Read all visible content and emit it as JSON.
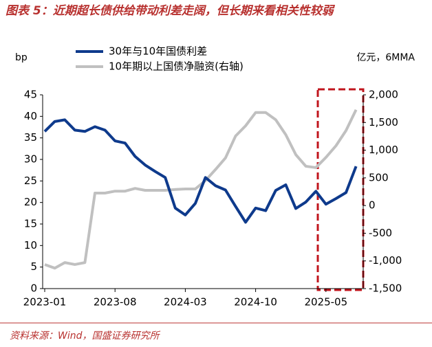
{
  "chart_data": {
    "type": "line",
    "title": "图表 5：近期超长债供给带动利差走阔，但长期来看相关性较弱",
    "y_label": "bp",
    "y2_label": "亿元，6MMA",
    "source": "资料来源：Wind，国盛证券研究所",
    "x": [
      "2023-01",
      "2023-02",
      "2023-03",
      "2023-04",
      "2023-05",
      "2023-06",
      "2023-07",
      "2023-08",
      "2023-09",
      "2023-10",
      "2023-11",
      "2023-12",
      "2024-01",
      "2024-02",
      "2024-03",
      "2024-04",
      "2024-05",
      "2024-06",
      "2024-07",
      "2024-08",
      "2024-09",
      "2024-10",
      "2024-11",
      "2024-12",
      "2025-01",
      "2025-02",
      "2025-03",
      "2025-04",
      "2025-05",
      "2025-06",
      "2025-07",
      "2025-08"
    ],
    "xticks": [
      "2023-01",
      "2023-08",
      "2024-03",
      "2024-10",
      "2025-05"
    ],
    "series": [
      {
        "name": "30年与10年国债利差",
        "color": "#0e3a8c",
        "axis": "y",
        "values": [
          36.5,
          38.8,
          39.2,
          36.8,
          36.5,
          37.6,
          36.8,
          34.3,
          33.8,
          30.7,
          28.7,
          27.2,
          25.8,
          18.7,
          17.1,
          19.8,
          25.8,
          23.9,
          22.9,
          19.1,
          15.4,
          18.7,
          18.1,
          22.8,
          24.1,
          18.6,
          20.1,
          22.6,
          19.6,
          20.9,
          22.3,
          28.4
        ]
      },
      {
        "name": "10年期以上国债净融资(右轴)",
        "color": "#c0c0c0",
        "axis": "y2",
        "values": [
          -1065,
          -1130,
          -1030,
          -1065,
          -1030,
          225,
          225,
          260,
          260,
          310,
          275,
          275,
          275,
          290,
          300,
          300,
          450,
          650,
          860,
          1255,
          1440,
          1680,
          1680,
          1550,
          1280,
          920,
          710,
          685,
          870,
          1080,
          1355,
          1730
        ]
      }
    ],
    "ylim": [
      0,
      45
    ],
    "yticks": [
      0,
      5,
      10,
      15,
      20,
      25,
      30,
      35,
      40,
      45
    ],
    "y2lim": [
      -1500,
      2000
    ],
    "y2ticks": [
      {
        "value": -1500,
        "label": "-1,500"
      },
      {
        "value": -1000,
        "label": "-1,000"
      },
      -500,
      0,
      500,
      {
        "value": 1000,
        "label": "1,000"
      },
      {
        "value": 1500,
        "label": "1,500"
      },
      {
        "value": 2000,
        "label": "2,000"
      }
    ]
  }
}
